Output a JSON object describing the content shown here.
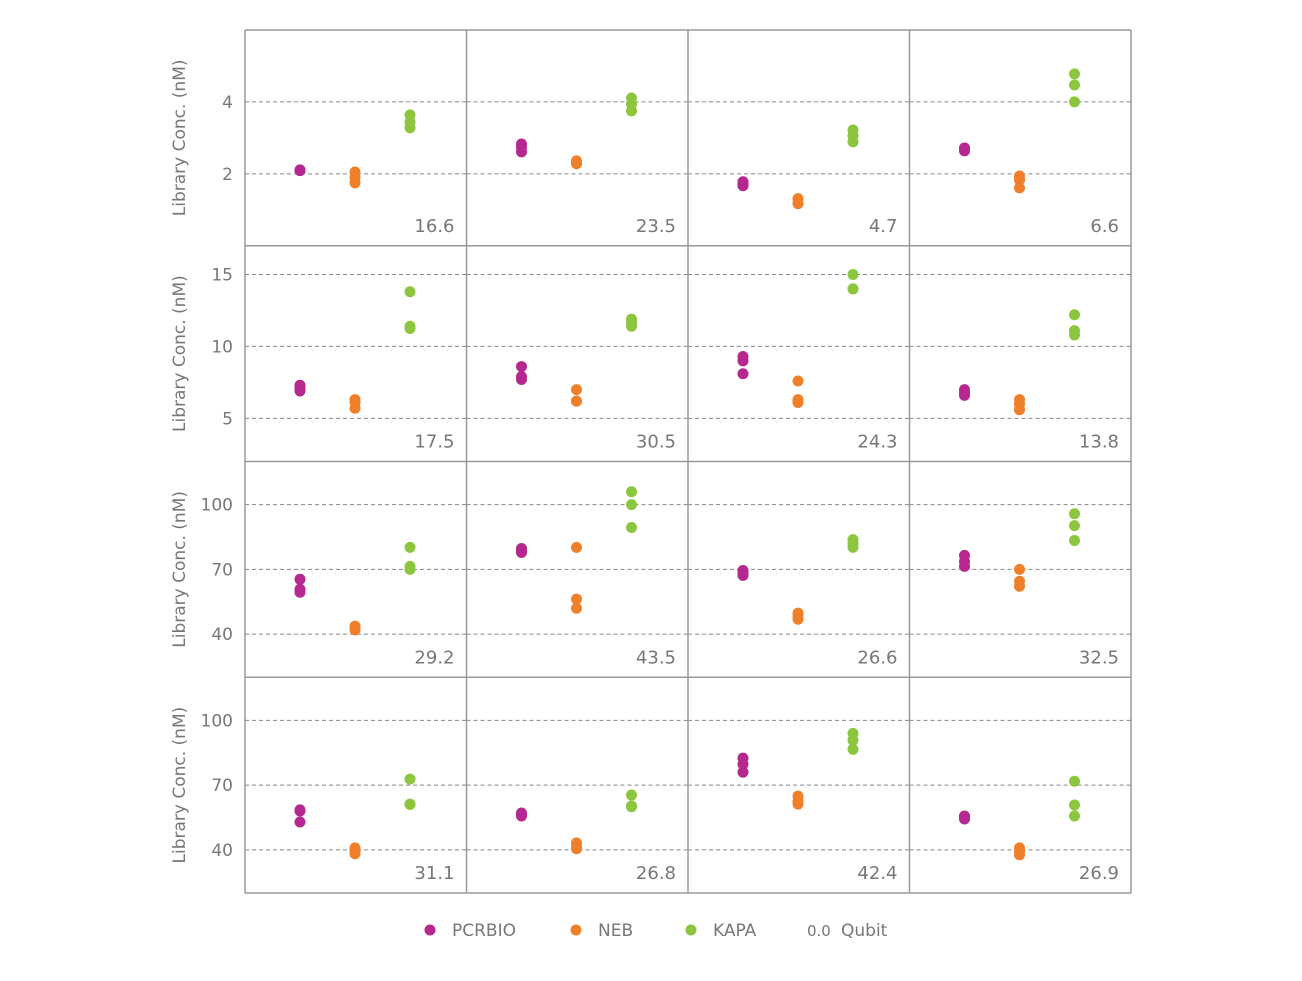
{
  "chart_data": {
    "type": "scatter",
    "layout": "facet grid 4x4",
    "ylabel": "Library Conc. (nM)",
    "categories": [
      "PCRBIO",
      "NEB",
      "KAPA"
    ],
    "colors": {
      "PCRBIO": "#b5288f",
      "NEB": "#f07f2a",
      "KAPA": "#8cc63f"
    },
    "legend": {
      "placement": "bottom",
      "entries": [
        "PCRBIO",
        "NEB",
        "KAPA"
      ],
      "qubit_label": "Qubit",
      "qubit_example": "0.0"
    },
    "grid": "dashed horizontal",
    "rows": [
      {
        "ylim": [
          0,
          6
        ],
        "yticks": [
          2,
          4
        ],
        "panels": [
          {
            "qubit": "16.6",
            "PCRBIO": [
              2.11,
              2.1,
              2.09
            ],
            "NEB": [
              2.05,
              1.9,
              1.75
            ],
            "KAPA": [
              3.64,
              3.44,
              3.28
            ]
          },
          {
            "qubit": "23.5",
            "PCRBIO": [
              2.83,
              2.75,
              2.61
            ],
            "NEB": [
              2.36,
              2.3,
              2.28
            ],
            "KAPA": [
              4.11,
              3.94,
              3.75
            ]
          },
          {
            "qubit": "4.7",
            "PCRBIO": [
              1.78,
              1.72,
              1.67
            ],
            "NEB": [
              1.31,
              1.2,
              1.17
            ],
            "KAPA": [
              3.22,
              3.06,
              2.89
            ]
          },
          {
            "qubit": "6.6",
            "PCRBIO": [
              2.72,
              2.68,
              2.64
            ],
            "NEB": [
              1.94,
              1.83,
              1.61
            ],
            "KAPA": [
              4.78,
              4.47,
              4.0
            ]
          }
        ]
      },
      {
        "ylim": [
          2,
          17
        ],
        "yticks": [
          5,
          10,
          15
        ],
        "panels": [
          {
            "qubit": "17.5",
            "PCRBIO": [
              7.3,
              7.1,
              6.9
            ],
            "NEB": [
              6.3,
              6.1,
              5.7
            ],
            "KAPA": [
              13.8,
              11.4,
              11.25
            ]
          },
          {
            "qubit": "30.5",
            "PCRBIO": [
              8.6,
              7.9,
              7.7
            ],
            "NEB": [
              7.0,
              6.2,
              6.2
            ],
            "KAPA": [
              11.9,
              11.6,
              11.4
            ]
          },
          {
            "qubit": "24.3",
            "PCRBIO": [
              9.3,
              9.0,
              8.1
            ],
            "NEB": [
              7.6,
              6.3,
              6.1
            ],
            "KAPA": [
              15.0,
              14.0,
              14.0
            ]
          },
          {
            "qubit": "13.8",
            "PCRBIO": [
              7.0,
              6.8,
              6.6
            ],
            "NEB": [
              6.3,
              6.0,
              5.6
            ],
            "KAPA": [
              12.2,
              11.1,
              10.8
            ]
          }
        ]
      },
      {
        "ylim": [
          20,
          120
        ],
        "yticks": [
          40,
          70,
          100
        ],
        "panels": [
          {
            "qubit": "29.2",
            "PCRBIO": [
              65.4,
              60.8,
              59.4
            ],
            "NEB": [
              43.7,
              42.5,
              41.9
            ],
            "KAPA": [
              80.2,
              71.4,
              70.0
            ]
          },
          {
            "qubit": "43.5",
            "PCRBIO": [
              79.7,
              78.5,
              77.8
            ],
            "NEB": [
              80.2,
              56.2,
              52.0
            ],
            "KAPA": [
              106.0,
              100.0,
              89.4
            ]
          },
          {
            "qubit": "26.6",
            "PCRBIO": [
              69.5,
              68.3,
              67.2
            ],
            "NEB": [
              49.7,
              48.5,
              46.9
            ],
            "KAPA": [
              83.8,
              82.0,
              80.2
            ]
          },
          {
            "qubit": "32.5",
            "PCRBIO": [
              76.5,
              73.7,
              71.4
            ],
            "NEB": [
              70.0,
              64.5,
              62.2
            ],
            "KAPA": [
              95.8,
              90.3,
              83.4
            ]
          }
        ]
      },
      {
        "ylim": [
          20,
          120
        ],
        "yticks": [
          40,
          70,
          100
        ],
        "panels": [
          {
            "qubit": "31.1",
            "PCRBIO": [
              58.5,
              58.0,
              52.9
            ],
            "NEB": [
              40.9,
              39.5,
              38.2
            ],
            "KAPA": [
              72.8,
              61.2,
              61.0
            ]
          },
          {
            "qubit": "26.8",
            "PCRBIO": [
              57.1,
              56.4,
              55.7
            ],
            "NEB": [
              43.2,
              41.5,
              40.5
            ],
            "KAPA": [
              65.4,
              60.3,
              60.0
            ]
          },
          {
            "qubit": "42.4",
            "PCRBIO": [
              82.5,
              79.7,
              76.0
            ],
            "NEB": [
              64.9,
              62.6,
              61.2
            ],
            "KAPA": [
              94.0,
              90.8,
              86.6
            ]
          },
          {
            "qubit": "26.9",
            "PCRBIO": [
              55.7,
              55.0,
              54.3
            ],
            "NEB": [
              40.9,
              39.5,
              37.7
            ],
            "KAPA": [
              71.8,
              60.8,
              55.7
            ]
          }
        ]
      }
    ]
  }
}
